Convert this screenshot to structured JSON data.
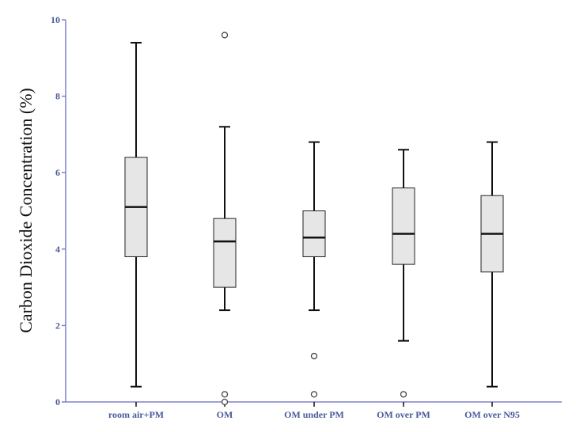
{
  "chart_data": {
    "type": "box",
    "title": "",
    "xlabel": "",
    "ylabel": "Carbon Dioxide Concentration (%)",
    "ylim": [
      0,
      10
    ],
    "yticks": [
      0,
      2,
      4,
      6,
      8,
      10
    ],
    "ytick_labels": [
      "0",
      "2",
      "4",
      "6",
      "8",
      "10"
    ],
    "grid": false,
    "categories": [
      "room air+PM",
      "OM",
      "OM under PM",
      "OM over PM",
      "OM over N95"
    ],
    "boxes": [
      {
        "name": "room air+PM",
        "min": 0.4,
        "q1": 3.8,
        "median": 5.1,
        "q3": 6.4,
        "max": 9.4,
        "outliers": []
      },
      {
        "name": "OM",
        "min": 2.4,
        "q1": 3.0,
        "median": 4.2,
        "q3": 4.8,
        "max": 7.2,
        "outliers": [
          9.6,
          0.2,
          0.0
        ]
      },
      {
        "name": "OM under PM",
        "min": 2.4,
        "q1": 3.8,
        "median": 4.3,
        "q3": 5.0,
        "max": 6.8,
        "outliers": [
          1.2,
          0.2
        ]
      },
      {
        "name": "OM over PM",
        "min": 1.6,
        "q1": 3.6,
        "median": 4.4,
        "q3": 5.6,
        "max": 6.6,
        "outliers": [
          0.2
        ]
      },
      {
        "name": "OM over N95",
        "min": 0.4,
        "q1": 3.4,
        "median": 4.4,
        "q3": 5.4,
        "max": 6.8,
        "outliers": []
      }
    ],
    "colors": {
      "box_fill": "#e6e6e6",
      "axis": "#8080cc",
      "tick_text": "#4a5a9a",
      "line": "#111111"
    }
  }
}
